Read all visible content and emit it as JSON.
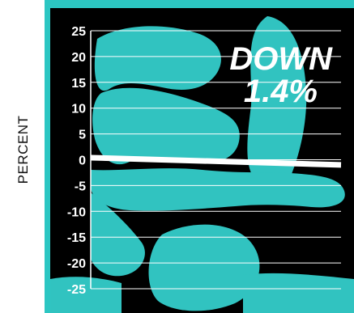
{
  "colors": {
    "frame": "#2cc6c2",
    "panel": "#000000",
    "art": "#31c3c0",
    "grid": "#ffffff",
    "line": "#ffffff",
    "text": "#ffffff"
  },
  "chart_data": {
    "type": "line",
    "title": "",
    "xlabel": "",
    "ylabel": "PERCENT",
    "ylim": [
      -25,
      25
    ],
    "yticks": [
      "25",
      "20",
      "15",
      "10",
      "5",
      "0",
      "-5",
      "-10",
      "-15",
      "-20",
      "-25"
    ],
    "grid": true,
    "annotation": {
      "line1": "DOWN",
      "line2": "1.4%"
    },
    "series": [
      {
        "x": [
          0,
          1
        ],
        "y": [
          0.4,
          -1.0
        ]
      }
    ]
  }
}
